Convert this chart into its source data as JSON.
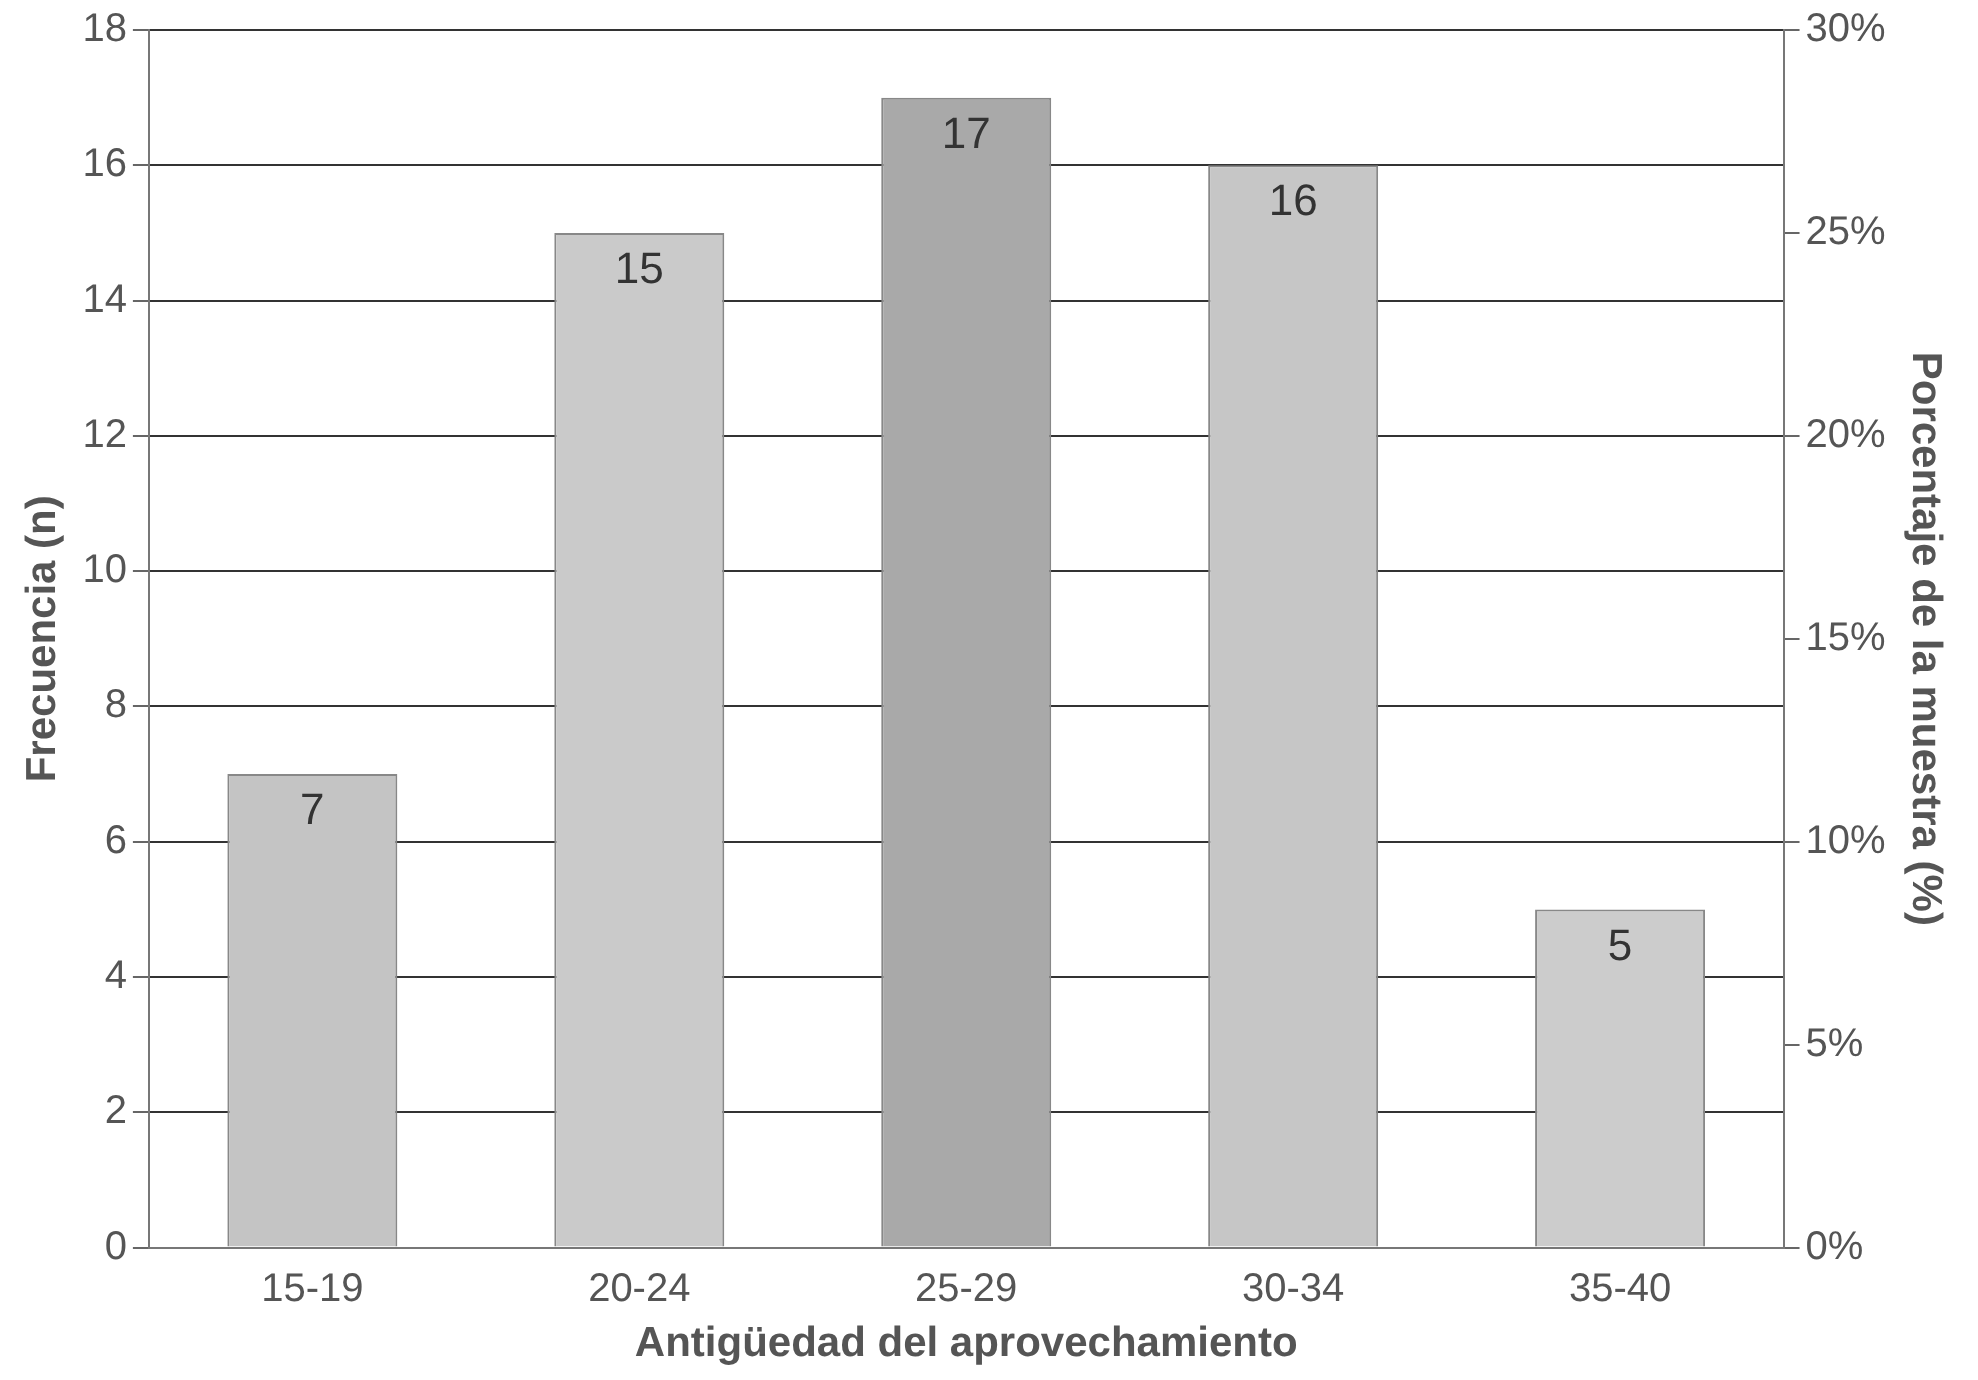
{
  "chart_data": {
    "type": "bar",
    "xlabel": "Antigüedad del aprovechamiento",
    "ylabel": "Frecuencia (n)",
    "y2label": "Porcentaje de la muestra (%)",
    "categories": [
      "15-19",
      "20-24",
      "25-29",
      "30-34",
      "35-40"
    ],
    "values": [
      7,
      15,
      17,
      16,
      5
    ],
    "colors": [
      "#c4c4c4",
      "#cacaca",
      "#a9a9a9",
      "#c6c6c6",
      "#cccccc"
    ],
    "ylim": [
      0,
      18
    ],
    "yticks": [
      0,
      2,
      4,
      6,
      8,
      10,
      12,
      14,
      16,
      18
    ],
    "y2lim": [
      0,
      30
    ],
    "y2ticks": [
      {
        "value": 0,
        "label": "0%"
      },
      {
        "value": 5,
        "label": "5%"
      },
      {
        "value": 10,
        "label": "10%"
      },
      {
        "value": 15,
        "label": "15%"
      },
      {
        "value": 20,
        "label": "20%"
      },
      {
        "value": 25,
        "label": "25%"
      },
      {
        "value": 30,
        "label": "30%"
      }
    ],
    "grid": "y",
    "legend": false,
    "data_labels": true
  }
}
